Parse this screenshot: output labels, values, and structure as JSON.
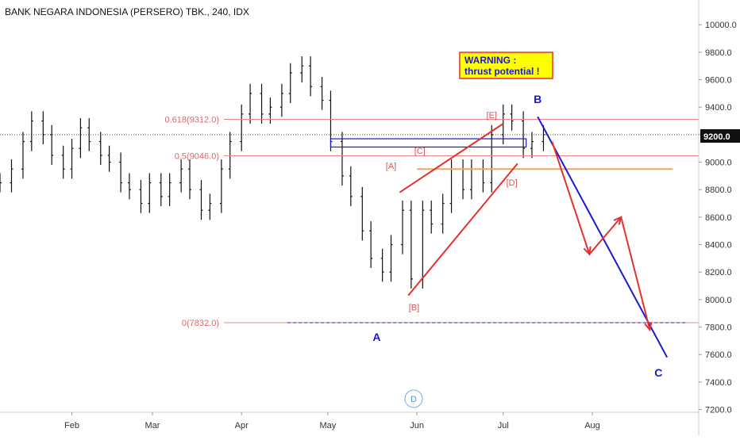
{
  "header": {
    "title": "BANK NEGARA INDONESIA (PERSERO) TBK., 240, IDX"
  },
  "warning": {
    "line1": "WARNING :",
    "line2": "thrust potential !"
  },
  "price_tag": "9200.0",
  "badge": "D",
  "fib_levels": [
    {
      "label": "0.618(9312.0)",
      "value": 9312.0
    },
    {
      "label": "0.5(9046.0)",
      "value": 9046.0
    },
    {
      "label": "0(7832.0)",
      "value": 7832.0
    }
  ],
  "wave_labels": [
    {
      "text": "A",
      "date": "2019-05-18",
      "value": 7700
    },
    {
      "text": "B",
      "date": "2019-07-13",
      "value": 9430
    },
    {
      "text": "C",
      "date": "2019-08-24",
      "value": 7440
    }
  ],
  "sub_labels": [
    {
      "text": "[A]",
      "date": "2019-05-23",
      "value": 8950
    },
    {
      "text": "[B]",
      "date": "2019-05-31",
      "value": 7920
    },
    {
      "text": "[C]",
      "date": "2019-06-02",
      "value": 9060
    },
    {
      "text": "[D]",
      "date": "2019-07-04",
      "value": 8830
    },
    {
      "text": "[E]",
      "date": "2019-06-27",
      "value": 9320
    }
  ],
  "colors": {
    "up_bar": "#111111",
    "fib_line": "#e88",
    "red_line": "#e53030",
    "blue_line": "#1a1acc",
    "orange_line": "#f2a55c",
    "warning_bg": "#ffff00",
    "warning_border": "#e53030",
    "price_tag_bg": "#111111",
    "dotted_price": "#555555"
  },
  "chart_data": {
    "type": "line",
    "title": "BANK NEGARA INDONESIA (PERSERO) TBK., 240, IDX",
    "xlabel": "",
    "ylabel": "",
    "x_ticks": [
      "Feb",
      "Mar",
      "Apr",
      "May",
      "Jun",
      "Jul",
      "Aug"
    ],
    "x_tick_dates": [
      "2019-02-01",
      "2019-03-01",
      "2019-04-01",
      "2019-05-01",
      "2019-06-01",
      "2019-07-01",
      "2019-08-01"
    ],
    "y_ticks": [
      7200,
      7400,
      7600,
      7800,
      8000,
      8200,
      8400,
      8600,
      8800,
      9000,
      9200,
      9400,
      9600,
      9800,
      10000
    ],
    "ylim": [
      7180,
      10180
    ],
    "xlim": [
      "2019-01-07",
      "2019-09-07"
    ],
    "current_price": 9200.0,
    "series": [
      {
        "values": [
          [
            "2019-01-07",
            8850
          ],
          [
            "2019-01-11",
            8950
          ],
          [
            "2019-01-15",
            9150
          ],
          [
            "2019-01-18",
            9300
          ],
          [
            "2019-01-22",
            9200
          ],
          [
            "2019-01-25",
            9050
          ],
          [
            "2019-01-29",
            8950
          ],
          [
            "2019-02-01",
            9100
          ],
          [
            "2019-02-04",
            9250
          ],
          [
            "2019-02-07",
            9150
          ],
          [
            "2019-02-11",
            9050
          ],
          [
            "2019-02-14",
            9000
          ],
          [
            "2019-02-18",
            8850
          ],
          [
            "2019-02-21",
            8800
          ],
          [
            "2019-02-25",
            8700
          ],
          [
            "2019-02-28",
            8850
          ],
          [
            "2019-03-04",
            8750
          ],
          [
            "2019-03-07",
            8850
          ],
          [
            "2019-03-11",
            8950
          ],
          [
            "2019-03-14",
            8800
          ],
          [
            "2019-03-18",
            8650
          ],
          [
            "2019-03-21",
            8700
          ],
          [
            "2019-03-25",
            8950
          ],
          [
            "2019-03-28",
            9150
          ],
          [
            "2019-04-01",
            9350
          ],
          [
            "2019-04-04",
            9500
          ],
          [
            "2019-04-08",
            9350
          ],
          [
            "2019-04-11",
            9400
          ],
          [
            "2019-04-15",
            9500
          ],
          [
            "2019-04-18",
            9650
          ],
          [
            "2019-04-22",
            9700
          ],
          [
            "2019-04-25",
            9550
          ],
          [
            "2019-04-29",
            9450
          ],
          [
            "2019-05-02",
            9150
          ],
          [
            "2019-05-06",
            8900
          ],
          [
            "2019-05-09",
            8750
          ],
          [
            "2019-05-13",
            8500
          ],
          [
            "2019-05-16",
            8300
          ],
          [
            "2019-05-20",
            8200
          ],
          [
            "2019-05-23",
            8400
          ],
          [
            "2019-05-27",
            8650
          ],
          [
            "2019-05-30",
            8150
          ],
          [
            "2019-06-03",
            8650
          ],
          [
            "2019-06-06",
            8550
          ],
          [
            "2019-06-10",
            8700
          ],
          [
            "2019-06-13",
            8950
          ],
          [
            "2019-06-17",
            8800
          ],
          [
            "2019-06-20",
            8950
          ],
          [
            "2019-06-24",
            8850
          ],
          [
            "2019-06-27",
            9200
          ],
          [
            "2019-07-01",
            9350
          ],
          [
            "2019-07-04",
            9300
          ],
          [
            "2019-07-08",
            9100
          ],
          [
            "2019-07-11",
            9150
          ],
          [
            "2019-07-15",
            9200
          ]
        ]
      }
    ],
    "annotations": {
      "wave_projection": [
        [
          "2019-07-13",
          9330
        ],
        [
          "2019-08-27",
          7580
        ]
      ],
      "zigzag_projection": [
        [
          "2019-07-18",
          9150
        ],
        [
          "2019-07-31",
          8330
        ],
        [
          "2019-08-11",
          8600
        ],
        [
          "2019-08-21",
          7780
        ]
      ],
      "upper_channel": [
        [
          "2019-05-26",
          8780
        ],
        [
          "2019-07-01",
          9280
        ]
      ],
      "lower_channel": [
        [
          "2019-05-29",
          8030
        ],
        [
          "2019-07-06",
          8990
        ]
      ],
      "box_zone": {
        "from": "2019-05-02",
        "to": "2019-07-09",
        "low": 9110,
        "high": 9170
      },
      "orange_line": {
        "from": "2019-06-01",
        "to": "2019-08-29",
        "value": 8950
      },
      "dashed_blue_line": {
        "from": "2019-04-17",
        "to": "2019-09-03",
        "value": 7832
      }
    }
  }
}
